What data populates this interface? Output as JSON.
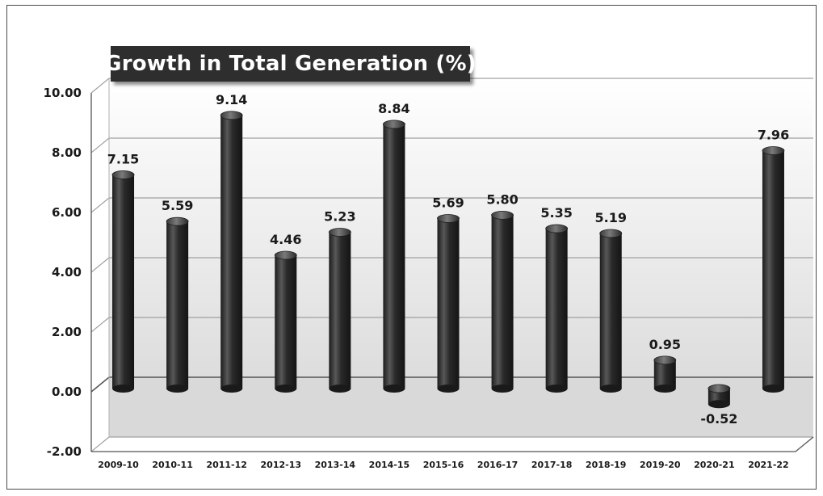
{
  "chart_data": {
    "type": "bar",
    "title": "Growth in Total Generation (%)",
    "categories": [
      "2009-10",
      "2010-11",
      "2011-12",
      "2012-13",
      "2013-14",
      "2014-15",
      "2015-16",
      "2016-17",
      "2017-18",
      "2018-19",
      "2019-20",
      "2020-21",
      "2021-22"
    ],
    "values": [
      7.15,
      5.59,
      9.14,
      4.46,
      5.23,
      8.84,
      5.69,
      5.8,
      5.35,
      5.19,
      0.95,
      -0.52,
      7.96
    ],
    "value_labels": [
      "7.15",
      "5.59",
      "9.14",
      "4.46",
      "5.23",
      "8.84",
      "5.69",
      "5.80",
      "5.35",
      "5.19",
      "0.95",
      "-0.52",
      "7.96"
    ],
    "y_ticks": [
      "-2.00",
      "0.00",
      "2.00",
      "4.00",
      "6.00",
      "8.00",
      "10.00"
    ],
    "y_tick_values": [
      -2,
      0,
      2,
      4,
      6,
      8,
      10
    ],
    "ylim": [
      -2,
      10
    ],
    "xlabel": "",
    "ylabel": "",
    "grid": true,
    "legend": "none",
    "style": "3d-cylinder",
    "colors": {
      "bar": "#2b2b2b",
      "bar_highlight": "#6a6a6a",
      "grid": "#9a9a9a",
      "title_bg": "#2e2e2e"
    }
  }
}
